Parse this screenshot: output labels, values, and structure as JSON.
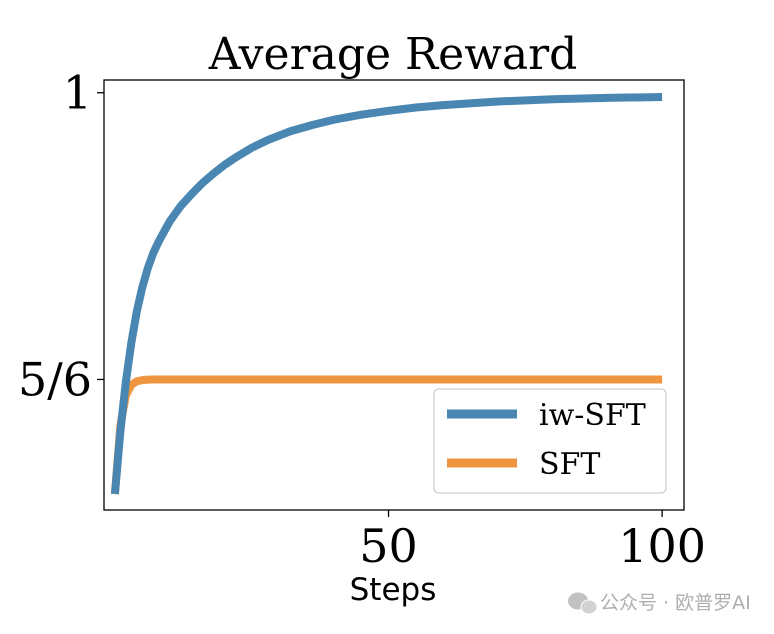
{
  "chart_data": {
    "type": "line",
    "title": "Average Reward",
    "xlabel": "Steps",
    "ylabel": "",
    "xlim": [
      -2,
      104
    ],
    "ylim": [
      0.7574,
      1.0074
    ],
    "xticks": [
      {
        "value": 50,
        "label": "50"
      },
      {
        "value": 100,
        "label": "100"
      }
    ],
    "yticks": [
      {
        "value": 1.0,
        "label": "1"
      },
      {
        "value": 0.8333,
        "label": "5/6"
      }
    ],
    "legend_position": "bottom-right",
    "grid": false,
    "series": [
      {
        "name": "iw-SFT",
        "color": "#4a86b2",
        "x": [
          0,
          1,
          2,
          3,
          4,
          5,
          6,
          7,
          8,
          10,
          12,
          14,
          16,
          18,
          20,
          22,
          25,
          28,
          32,
          36,
          40,
          45,
          50,
          55,
          60,
          70,
          80,
          90,
          100
        ],
        "y": [
          0.7667,
          0.8033,
          0.8322,
          0.8549,
          0.8728,
          0.8869,
          0.898,
          0.9067,
          0.9135,
          0.9252,
          0.934,
          0.941,
          0.9475,
          0.953,
          0.958,
          0.9622,
          0.968,
          0.9726,
          0.9775,
          0.9812,
          0.9843,
          0.9872,
          0.9895,
          0.9914,
          0.9928,
          0.9949,
          0.9962,
          0.997,
          0.9975
        ]
      },
      {
        "name": "SFT",
        "color": "#f0953f",
        "x": [
          0,
          1,
          2,
          3,
          4,
          5,
          6,
          7,
          8,
          10,
          12,
          15,
          20,
          30,
          40,
          50,
          60,
          70,
          80,
          90,
          100
        ],
        "y": [
          0.7667,
          0.8067,
          0.824,
          0.8302,
          0.8322,
          0.8329,
          0.8332,
          0.8333,
          0.8333,
          0.8333,
          0.8333,
          0.8333,
          0.8333,
          0.8333,
          0.8333,
          0.8333,
          0.8333,
          0.8333,
          0.8333,
          0.8333,
          0.8333
        ]
      }
    ]
  },
  "watermark": {
    "text": "公众号 · 欧普罗AI",
    "icon": "wechat-icon"
  }
}
